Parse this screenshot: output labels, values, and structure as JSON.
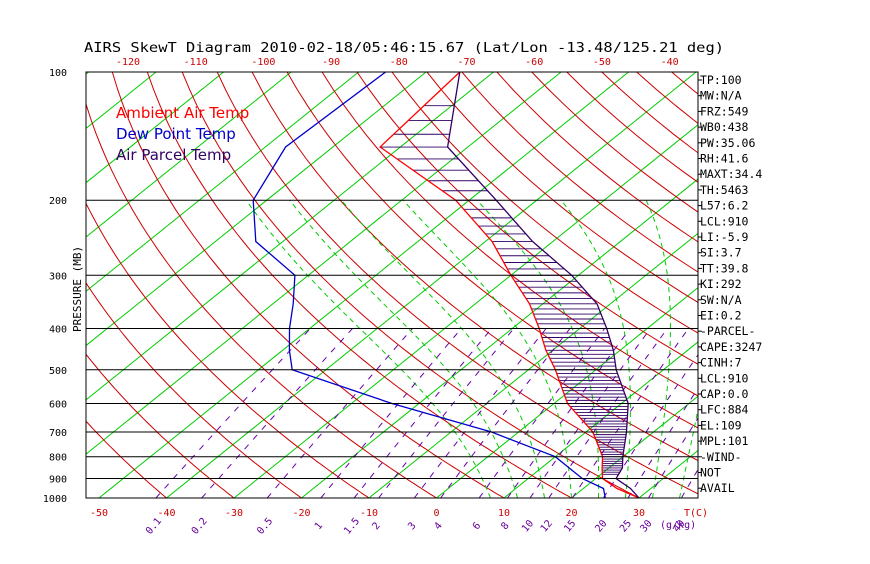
{
  "chart_data": {
    "type": "line",
    "title": "AIRS SkewT Diagram 2010-02-18/05:46:15.67 (Lat/Lon -13.48/125.21 deg)",
    "ylabel": "PRESSURE (MB)",
    "xlabel_unit": "T(C)",
    "mixing_unit": "(g/kg)",
    "yscale": "log",
    "ylim": [
      1000,
      100
    ],
    "pressure_ticks": [
      100,
      200,
      300,
      400,
      500,
      600,
      700,
      800,
      900,
      1000
    ],
    "pressure_lines": [
      200,
      300,
      400,
      500,
      600,
      700,
      800,
      900
    ],
    "bottom_temp_ticks": [
      -50,
      -40,
      -30,
      -20,
      -10,
      0,
      10,
      20,
      30
    ],
    "top_temp_ticks": [
      -120,
      -110,
      -100,
      -90,
      -80,
      -70,
      -60,
      -50,
      -40
    ],
    "mixing_ratio_labels": [
      "0.1",
      "0.2",
      "0.5",
      "1",
      "1.5",
      "2",
      "3",
      "4",
      "6",
      "8",
      "10",
      "12",
      "15",
      "20",
      "25",
      "30",
      "40"
    ],
    "legend": [
      {
        "label": "Ambient Air Temp",
        "color": "#ff0000"
      },
      {
        "label": "Dew Point Temp",
        "color": "#0000cc"
      },
      {
        "label": "Air Parcel Temp",
        "color": "#330066"
      }
    ],
    "series": [
      {
        "name": "Ambient Air Temp",
        "color": "#ff0000",
        "pressure": [
          100,
          150,
          200,
          250,
          300,
          350,
          400,
          450,
          500,
          600,
          700,
          800,
          850,
          900,
          950,
          1000
        ],
        "temp": [
          -75,
          -73,
          -52,
          -39,
          -30,
          -22,
          -16,
          -11,
          -6,
          2,
          11,
          17,
          19,
          21,
          25,
          30
        ]
      },
      {
        "name": "Dew Point Temp",
        "color": "#0000cc",
        "pressure": [
          100,
          150,
          200,
          250,
          300,
          350,
          400,
          450,
          500,
          600,
          700,
          800,
          900,
          950,
          1000
        ],
        "temp": [
          -86,
          -87,
          -82,
          -74,
          -62,
          -57,
          -53,
          -49,
          -45,
          -24,
          -4,
          10,
          18,
          23,
          25
        ]
      },
      {
        "name": "Air Parcel Temp",
        "color": "#330066",
        "pressure": [
          100,
          150,
          200,
          250,
          300,
          350,
          400,
          450,
          500,
          600,
          700,
          800,
          850,
          900,
          950,
          1000
        ],
        "temp": [
          -75,
          -63,
          -46,
          -33,
          -21,
          -12,
          -6,
          -1,
          3,
          11,
          16,
          20,
          22,
          23,
          27,
          30
        ]
      }
    ]
  },
  "side_panel": [
    "TP:100",
    "MW:N/A",
    "FRZ:549",
    "WB0:438",
    "PW:35.06",
    "RH:41.6",
    "MAXT:34.4",
    "TH:5463",
    "L57:6.2",
    "LCL:910",
    "LI:-5.9",
    "SI:3.7",
    "TT:39.8",
    "KI:292",
    "SW:N/A",
    "EI:0.2",
    "-PARCEL-",
    "CAPE:3247",
    "CINH:7",
    "LCL:910",
    "CAP:0.0",
    "LFC:884",
    "EL:109",
    "MPL:101",
    "-WIND-",
    "NOT",
    "AVAIL"
  ],
  "colors": {
    "frame": "#000000",
    "isotherm": "#00cc00",
    "dry_adiabat": "#cc0000",
    "moist_adiabat": "#00cc00",
    "mixing_ratio": "#6600aa",
    "axis_text": "#cc0000",
    "mixing_text": "#660099",
    "cape_hatch": "#330066"
  }
}
